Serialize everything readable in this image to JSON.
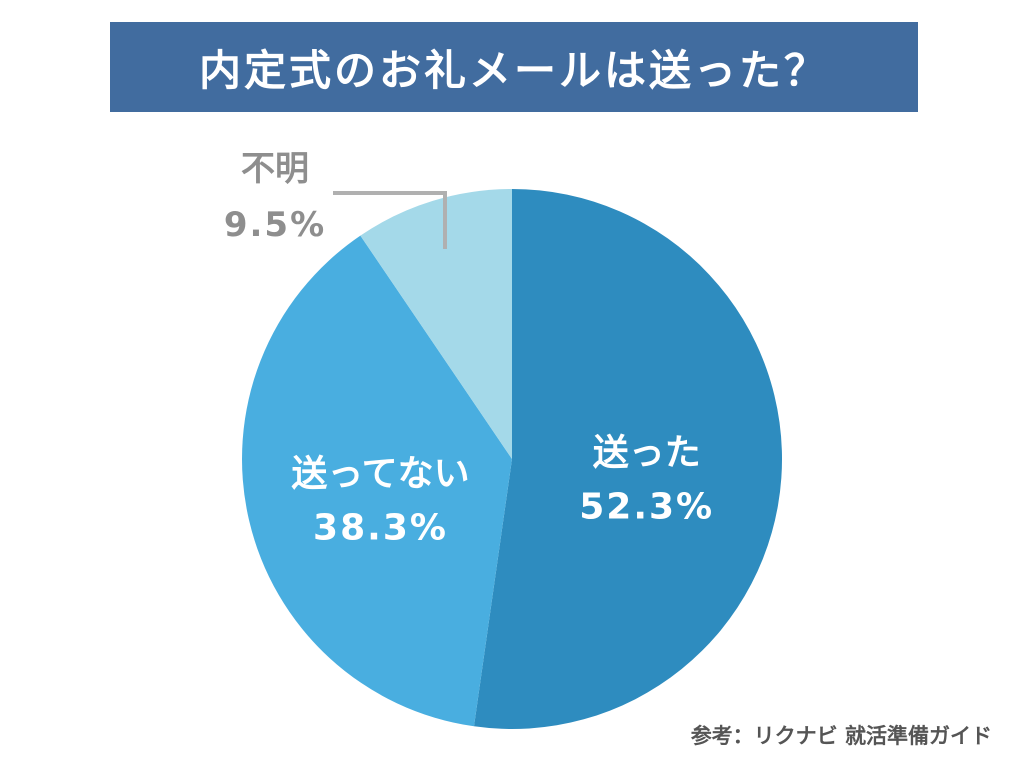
{
  "title": "内定式のお礼メールは送った？",
  "source": "参考：リクナビ 就活準備ガイド",
  "colors": {
    "title_bg": "#416c9f",
    "title_text": "#ffffff",
    "label_light": "#ffffff",
    "label_dark": "#8e8e8e",
    "leader_line": "#b0b0b0"
  },
  "chart_data": {
    "type": "pie",
    "start": "12 o'clock",
    "direction": "clockwise",
    "slices": [
      {
        "label": "送った",
        "value": 52.3,
        "value_label": "52.3%",
        "color": "#2e8cbf",
        "label_position": "inside"
      },
      {
        "label": "送ってない",
        "value": 38.3,
        "value_label": "38.3%",
        "color": "#49aee0",
        "label_position": "inside"
      },
      {
        "label": "不明",
        "value": 9.5,
        "value_label": "9.5%",
        "color": "#a4d9e9",
        "label_position": "outside"
      }
    ]
  }
}
